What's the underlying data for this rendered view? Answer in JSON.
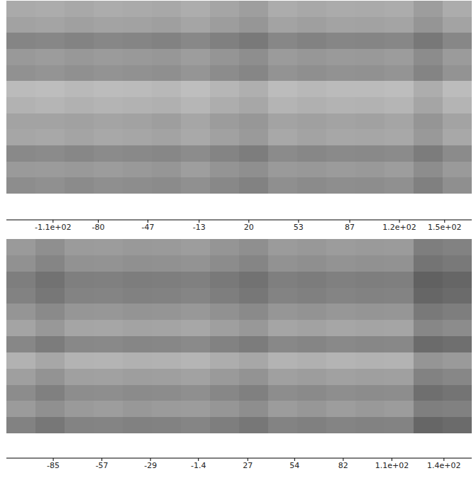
{
  "chart_data": [
    {
      "type": "heatmap",
      "color": "gray",
      "tick_labels": false,
      "cells": [
        [
          65,
          68,
          63,
          67,
          65,
          62,
          69,
          59,
          51,
          67,
          62,
          66,
          65,
          68,
          49,
          67
        ],
        [
          55,
          58,
          53,
          57,
          55,
          52,
          59,
          49,
          41,
          57,
          52,
          56,
          55,
          58,
          39,
          57
        ],
        [
          20,
          23,
          18,
          22,
          20,
          17,
          24,
          14,
          6,
          22,
          17,
          21,
          20,
          23,
          4,
          22
        ],
        [
          45,
          48,
          43,
          47,
          45,
          42,
          49,
          39,
          31,
          47,
          42,
          46,
          45,
          48,
          29,
          47
        ],
        [
          35,
          38,
          33,
          37,
          35,
          32,
          39,
          29,
          21,
          37,
          32,
          36,
          35,
          38,
          19,
          37
        ],
        [
          85,
          88,
          83,
          87,
          85,
          82,
          89,
          79,
          71,
          87,
          82,
          86,
          85,
          88,
          69,
          87
        ],
        [
          75,
          78,
          73,
          77,
          75,
          72,
          79,
          69,
          61,
          77,
          72,
          76,
          75,
          78,
          59,
          77
        ],
        [
          56,
          57,
          54,
          58,
          55,
          51,
          60,
          48,
          42,
          56,
          53,
          57,
          54,
          59,
          40,
          56
        ],
        [
          60,
          63,
          58,
          62,
          60,
          57,
          64,
          54,
          46,
          62,
          57,
          61,
          60,
          63,
          44,
          62
        ],
        [
          25,
          28,
          23,
          27,
          25,
          22,
          29,
          19,
          11,
          27,
          22,
          26,
          25,
          28,
          9,
          27
        ],
        [
          46,
          47,
          44,
          48,
          45,
          41,
          50,
          38,
          32,
          46,
          43,
          47,
          44,
          49,
          30,
          46
        ],
        [
          30,
          33,
          28,
          32,
          30,
          27,
          34,
          24,
          16,
          32,
          27,
          31,
          30,
          33,
          14,
          32
        ]
      ],
      "colorbar": {
        "range": [
          -141,
          168
        ],
        "ticks": [
          {
            "value": -110,
            "label": "-1.1e+02"
          },
          -80,
          -47,
          -13,
          20,
          53,
          87,
          {
            "value": 120,
            "label": "1.2e+02"
          },
          {
            "value": 150,
            "label": "1.5e+02"
          }
        ]
      }
    },
    {
      "type": "heatmap",
      "color": "gray",
      "tick_labels": false,
      "cells": [
        [
          50,
          38,
          51,
          52,
          49,
          50,
          53,
          45,
          38,
          51,
          48,
          52,
          50,
          51,
          20,
          25
        ],
        [
          40,
          28,
          41,
          42,
          39,
          40,
          43,
          35,
          28,
          41,
          38,
          42,
          40,
          41,
          10,
          15
        ],
        [
          20,
          8,
          21,
          22,
          19,
          20,
          23,
          15,
          8,
          21,
          18,
          22,
          20,
          21,
          -10,
          -5
        ],
        [
          25,
          13,
          26,
          27,
          24,
          25,
          28,
          20,
          13,
          26,
          23,
          27,
          25,
          26,
          -5,
          0
        ],
        [
          45,
          33,
          46,
          47,
          44,
          45,
          48,
          40,
          33,
          46,
          43,
          47,
          45,
          46,
          15,
          20
        ],
        [
          60,
          48,
          61,
          62,
          59,
          60,
          63,
          55,
          48,
          61,
          58,
          62,
          60,
          61,
          30,
          35
        ],
        [
          30,
          18,
          31,
          32,
          29,
          30,
          33,
          25,
          18,
          31,
          28,
          32,
          30,
          31,
          0,
          5
        ],
        [
          75,
          63,
          76,
          77,
          74,
          75,
          78,
          70,
          63,
          76,
          73,
          77,
          75,
          76,
          45,
          50
        ],
        [
          55,
          43,
          56,
          57,
          54,
          55,
          58,
          50,
          43,
          56,
          53,
          57,
          55,
          56,
          25,
          30
        ],
        [
          35,
          23,
          36,
          37,
          34,
          35,
          38,
          30,
          23,
          36,
          33,
          37,
          35,
          36,
          5,
          10
        ],
        [
          51,
          39,
          50,
          53,
          48,
          51,
          52,
          46,
          37,
          52,
          47,
          53,
          49,
          52,
          21,
          24
        ],
        [
          25,
          13,
          26,
          27,
          24,
          25,
          28,
          20,
          13,
          26,
          23,
          27,
          25,
          26,
          -5,
          0
        ]
      ],
      "colorbar": {
        "range": [
          -112,
          156
        ],
        "ticks": [
          -85,
          -57,
          -29,
          -1.4,
          27,
          54,
          82,
          {
            "value": 110,
            "label": "1.1e+02"
          },
          {
            "value": 140,
            "label": "1.4e+02"
          }
        ]
      }
    }
  ]
}
